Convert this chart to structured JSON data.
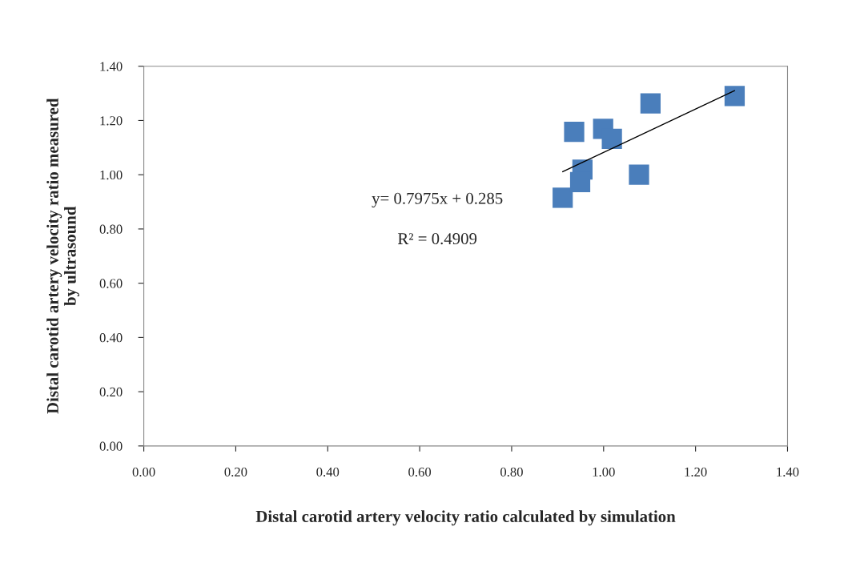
{
  "chart_data": {
    "type": "scatter",
    "xlabel": "Distal carotid artery velocity ratio calculated by simulation",
    "ylabel": "Distal carotid artery velocity ratio measured\nby ultrasound",
    "series": [
      {
        "color": "#4a7ebb",
        "marker": "square",
        "x": [
          0.911,
          0.936,
          0.999,
          1.018,
          0.954,
          0.949,
          1.077,
          1.102,
          1.285
        ],
        "values": [
          0.915,
          1.158,
          1.169,
          1.132,
          1.019,
          0.973,
          1.0,
          1.263,
          1.29
        ]
      },
      {
        "type": "line",
        "color": "#000000",
        "marker": "none",
        "x": [
          0.911,
          1.285
        ],
        "values": [
          1.011,
          1.31
        ]
      }
    ],
    "annotations": [
      "y= 0.7975x + 0.285",
      "R² = 0.4909"
    ],
    "xlim": [
      0,
      1.4
    ],
    "ylim": [
      0,
      1.4
    ],
    "xticks": [
      {
        "value": 0,
        "label": "0.00"
      },
      {
        "value": 0.2,
        "label": "0.20"
      },
      {
        "value": 0.4,
        "label": "0.40"
      },
      {
        "value": 0.6,
        "label": "0.60"
      },
      {
        "value": 0.8,
        "label": "0.80"
      },
      {
        "value": 1.0,
        "label": "1.00"
      },
      {
        "value": 1.2,
        "label": "1.20"
      },
      {
        "value": 1.4,
        "label": "1.40"
      }
    ],
    "yticks": [
      {
        "value": 0,
        "label": "0.00"
      },
      {
        "value": 0.2,
        "label": "0.20"
      },
      {
        "value": 0.4,
        "label": "0.40"
      },
      {
        "value": 0.6,
        "label": "0.60"
      },
      {
        "value": 0.8,
        "label": "0.80"
      },
      {
        "value": 1.0,
        "label": "1.00"
      },
      {
        "value": 1.2,
        "label": "1.20"
      },
      {
        "value": 1.4,
        "label": "1.40"
      }
    ],
    "grid": false,
    "legend": false
  }
}
